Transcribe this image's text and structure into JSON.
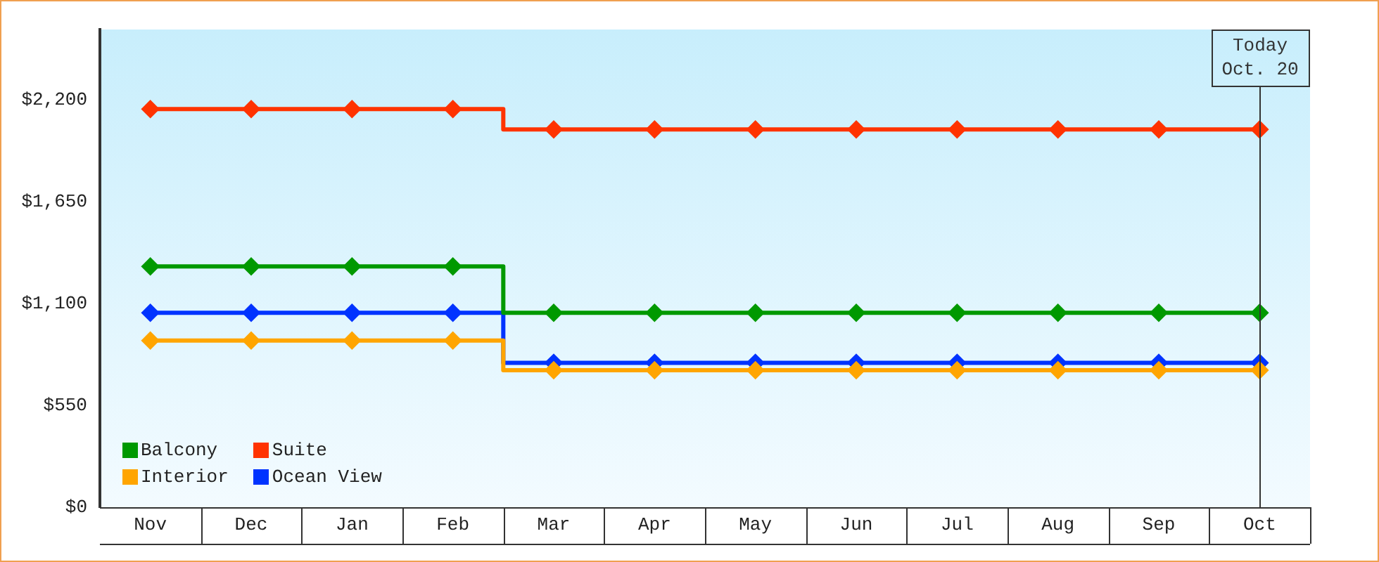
{
  "chart_data": {
    "type": "step",
    "marker": "diamond",
    "legend": "bottom left",
    "categories": [
      "Nov",
      "Dec",
      "Jan",
      "Feb",
      "Mar",
      "Apr",
      "May",
      "Jun",
      "Jul",
      "Aug",
      "Sep",
      "Oct"
    ],
    "ylim": [
      0,
      2580
    ],
    "yticks": [
      {
        "value": 0,
        "label": "$0"
      },
      {
        "value": 550,
        "label": "$550"
      },
      {
        "value": 1100,
        "label": "$1,100"
      },
      {
        "value": 1650,
        "label": "$1,650"
      },
      {
        "value": 2200,
        "label": "$2,200"
      }
    ],
    "ref_lines": [
      {
        "axis": "x",
        "value": "Oct",
        "label": "Today\nOct. 20",
        "color": "#333333"
      }
    ],
    "series": [
      {
        "name": "Balcony",
        "color": "#009900",
        "values": [
          1300,
          1300,
          1300,
          1300,
          1050,
          1050,
          1050,
          1050,
          1050,
          1050,
          1050,
          1050
        ]
      },
      {
        "name": "Suite",
        "color": "#ff3300",
        "values": [
          2150,
          2150,
          2150,
          2150,
          2040,
          2040,
          2040,
          2040,
          2040,
          2040,
          2040,
          2040
        ]
      },
      {
        "name": "Interior",
        "color": "#ffa500",
        "values": [
          900,
          900,
          900,
          900,
          740,
          740,
          740,
          740,
          740,
          740,
          740,
          740
        ]
      },
      {
        "name": "Ocean View",
        "color": "#0033ff",
        "values": [
          1050,
          1050,
          1050,
          1050,
          780,
          780,
          780,
          780,
          780,
          780,
          780,
          780
        ]
      }
    ]
  }
}
